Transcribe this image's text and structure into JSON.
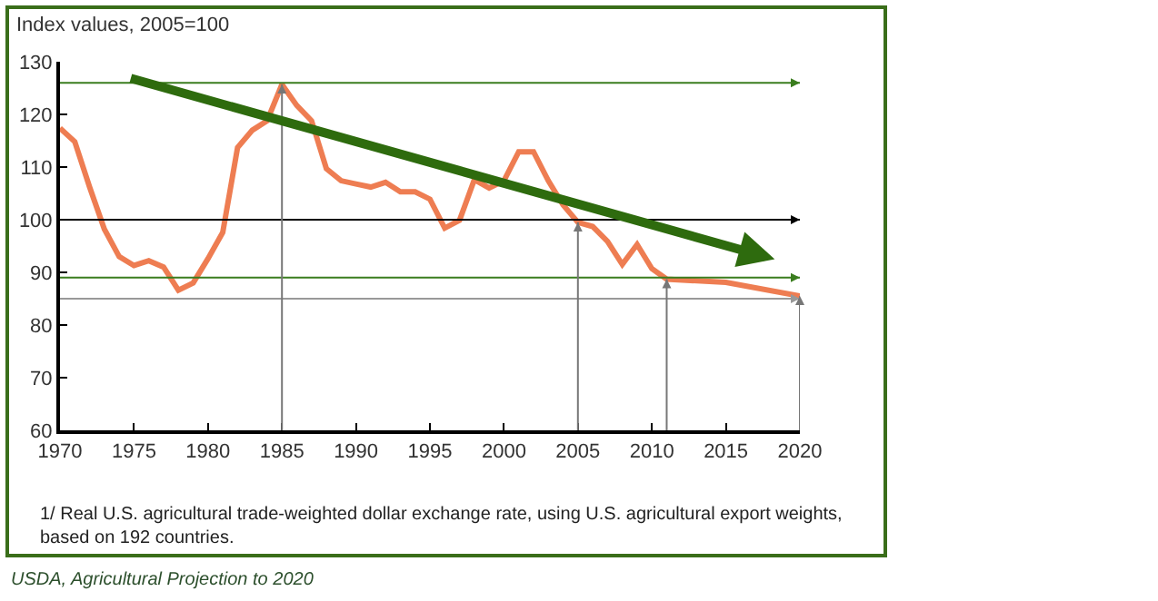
{
  "chart_data": {
    "type": "line",
    "ylabel": "Index values, 2005=100",
    "xlim": [
      1970,
      2020
    ],
    "xticks": [
      1970,
      1975,
      1980,
      1985,
      1990,
      1995,
      2000,
      2005,
      2010,
      2015,
      2020
    ],
    "ylim": [
      60,
      130
    ],
    "yticks": [
      60,
      70,
      80,
      90,
      100,
      110,
      120,
      130
    ],
    "grid": false,
    "marker": "none",
    "line_style": "solid",
    "series": [
      {
        "color": "#ee7d52",
        "x": [
          1970,
          1971,
          1972,
          1973,
          1974,
          1975,
          1976,
          1977,
          1978,
          1979,
          1980,
          1981,
          1982,
          1983,
          1984,
          1985,
          1986,
          1987,
          1988,
          1989,
          1990,
          1991,
          1992,
          1993,
          1994,
          1995,
          1996,
          1997,
          1998,
          1999,
          2000,
          2001,
          2002,
          2003,
          2004,
          2005,
          2006,
          2007,
          2008,
          2009,
          2010,
          2011,
          2015,
          2020
        ],
        "values": [
          117.4,
          114.8,
          106.2,
          98.2,
          93,
          91.3,
          92.2,
          91,
          86.6,
          88,
          92.6,
          97.6,
          113.7,
          117,
          118.8,
          125.7,
          121.7,
          118.8,
          109.7,
          107.4,
          106.8,
          106.2,
          107.1,
          105.3,
          105.3,
          103.9,
          98.4,
          99.9,
          107.6,
          106,
          107.4,
          112.9,
          112.9,
          107.4,
          102.8,
          99.5,
          98.7,
          95.9,
          91.5,
          95.3,
          90.7,
          88.7,
          88.1,
          85.5
        ]
      }
    ],
    "ref_lines": [
      {
        "axis": "y",
        "value": 126,
        "color": "#3a7d1e"
      },
      {
        "axis": "y",
        "value": 100,
        "color": "#000000"
      },
      {
        "axis": "y",
        "value": 89,
        "color": "#3a7d1e"
      },
      {
        "axis": "y",
        "value": 85,
        "color": "#999999"
      },
      {
        "axis": "x",
        "value": 1985,
        "color": "#777777"
      },
      {
        "axis": "x",
        "value": 2005,
        "color": "#777777"
      },
      {
        "axis": "x",
        "value": 2011,
        "color": "#777777"
      },
      {
        "axis": "x",
        "value": 2020,
        "color": "#777777"
      }
    ],
    "annotations": [
      "1/ Real U.S. agricultural trade-weighted dollar exchange rate, using U.S. agricultural export weights, based on 192 countries.",
      "USDA, Agricultural Projection to 2020"
    ]
  }
}
